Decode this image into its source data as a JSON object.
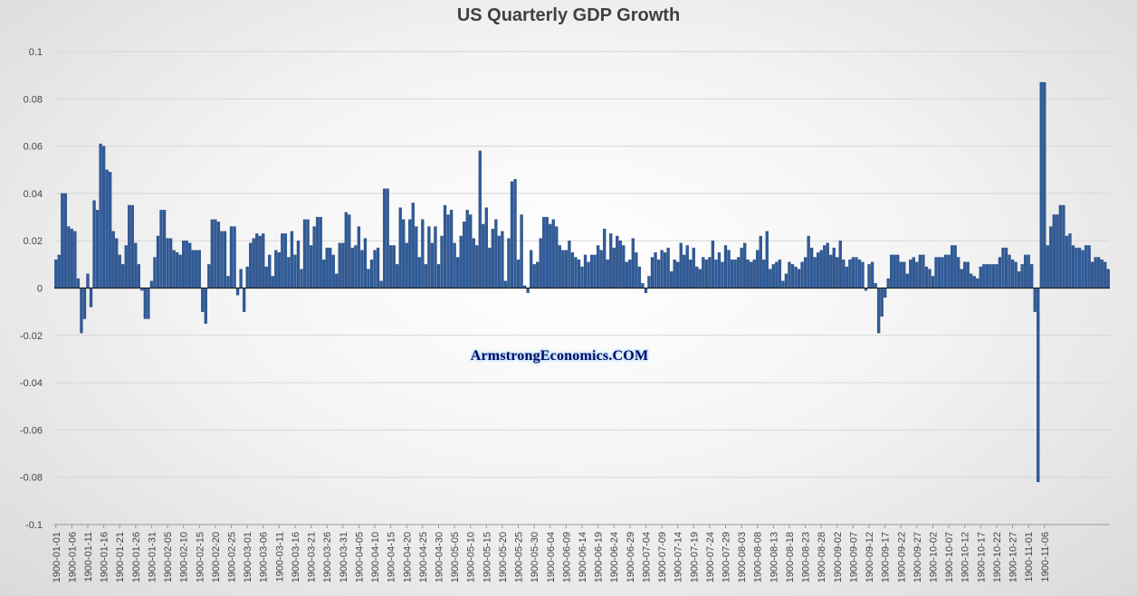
{
  "chart_data": {
    "type": "bar",
    "title": "US Quarterly GDP Growth",
    "xlabel": "",
    "ylabel": "",
    "ylim": [
      -0.1,
      0.1
    ],
    "y_ticks": [
      -0.1,
      -0.08,
      -0.06,
      -0.04,
      -0.02,
      0,
      0.02,
      0.04,
      0.06,
      0.08,
      0.1
    ],
    "y_tick_labels": [
      "-0.1",
      "-0.08",
      "-0.06",
      "-0.04",
      "-0.02",
      "0",
      "0.02",
      "0.04",
      "0.06",
      "0.08",
      "0.1"
    ],
    "grid": true,
    "legend": "none",
    "x_tick_labels": [
      "1900-01-01",
      "1900-01-06",
      "1900-01-11",
      "1900-01-16",
      "1900-01-21",
      "1900-01-26",
      "1900-01-31",
      "1900-02-05",
      "1900-02-10",
      "1900-02-15",
      "1900-02-20",
      "1900-02-25",
      "1900-03-01",
      "1900-03-06",
      "1900-03-11",
      "1900-03-16",
      "1900-03-21",
      "1900-03-26",
      "1900-03-31",
      "1900-04-05",
      "1900-04-10",
      "1900-04-15",
      "1900-04-20",
      "1900-04-25",
      "1900-04-30",
      "1900-05-05",
      "1900-05-10",
      "1900-05-15",
      "1900-05-20",
      "1900-05-25",
      "1900-05-30",
      "1900-06-04",
      "1900-06-09",
      "1900-06-14",
      "1900-06-19",
      "1900-06-24",
      "1900-06-29",
      "1900-07-04",
      "1900-07-09",
      "1900-07-14",
      "1900-07-19",
      "1900-07-24",
      "1900-07-29",
      "1900-08-03",
      "1900-08-08",
      "1900-08-13",
      "1900-08-18",
      "1900-08-23",
      "1900-08-28",
      "1900-09-02",
      "1900-09-07",
      "1900-09-12",
      "1900-09-17",
      "1900-09-22",
      "1900-09-27",
      "1900-10-02",
      "1900-10-07",
      "1900-10-12",
      "1900-10-17",
      "1900-10-22",
      "1900-10-27",
      "1900-11-01",
      "1900-11-06"
    ],
    "values": [
      0.012,
      0.014,
      0.04,
      0.04,
      0.026,
      0.025,
      0.024,
      0.004,
      -0.019,
      -0.013,
      0.006,
      -0.008,
      0.037,
      0.033,
      0.061,
      0.06,
      0.05,
      0.049,
      0.024,
      0.021,
      0.014,
      0.01,
      0.018,
      0.035,
      0.035,
      0.019,
      0.01,
      -0.001,
      -0.013,
      -0.013,
      0.003,
      0.013,
      0.022,
      0.033,
      0.033,
      0.021,
      0.021,
      0.016,
      0.015,
      0.014,
      0.02,
      0.02,
      0.019,
      0.016,
      0.016,
      0.016,
      -0.01,
      -0.015,
      0.01,
      0.029,
      0.029,
      0.028,
      0.024,
      0.024,
      0.005,
      0.026,
      0.026,
      -0.003,
      0.008,
      -0.01,
      0.009,
      0.019,
      0.021,
      0.023,
      0.022,
      0.023,
      0.009,
      0.014,
      0.005,
      0.016,
      0.015,
      0.023,
      0.023,
      0.013,
      0.024,
      0.014,
      0.02,
      0.008,
      0.029,
      0.029,
      0.018,
      0.026,
      0.03,
      0.03,
      0.012,
      0.017,
      0.017,
      0.014,
      0.006,
      0.019,
      0.019,
      0.032,
      0.031,
      0.017,
      0.018,
      0.026,
      0.016,
      0.021,
      0.008,
      0.012,
      0.016,
      0.017,
      0.003,
      0.042,
      0.042,
      0.018,
      0.018,
      0.01,
      0.034,
      0.029,
      0.019,
      0.029,
      0.036,
      0.026,
      0.013,
      0.029,
      0.01,
      0.026,
      0.019,
      0.026,
      0.01,
      0.022,
      0.035,
      0.031,
      0.033,
      0.019,
      0.013,
      0.022,
      0.028,
      0.033,
      0.031,
      0.021,
      0.018,
      0.058,
      0.027,
      0.034,
      0.017,
      0.025,
      0.029,
      0.022,
      0.024,
      0.003,
      0.021,
      0.045,
      0.046,
      0.012,
      0.031,
      0.001,
      -0.002,
      0.016,
      0.01,
      0.011,
      0.021,
      0.03,
      0.03,
      0.027,
      0.029,
      0.026,
      0.018,
      0.016,
      0.016,
      0.02,
      0.015,
      0.013,
      0.012,
      0.009,
      0.014,
      0.011,
      0.014,
      0.014,
      0.018,
      0.016,
      0.025,
      0.012,
      0.023,
      0.017,
      0.022,
      0.02,
      0.018,
      0.011,
      0.012,
      0.021,
      0.015,
      0.009,
      0.002,
      -0.002,
      0.005,
      0.013,
      0.015,
      0.012,
      0.016,
      0.015,
      0.017,
      0.007,
      0.012,
      0.011,
      0.019,
      0.014,
      0.018,
      0.012,
      0.017,
      0.009,
      0.008,
      0.013,
      0.012,
      0.013,
      0.02,
      0.012,
      0.015,
      0.011,
      0.018,
      0.016,
      0.012,
      0.012,
      0.013,
      0.017,
      0.019,
      0.012,
      0.011,
      0.012,
      0.016,
      0.022,
      0.012,
      0.024,
      0.008,
      0.01,
      0.011,
      0.012,
      0.003,
      0.006,
      0.011,
      0.01,
      0.009,
      0.008,
      0.011,
      0.013,
      0.022,
      0.017,
      0.013,
      0.015,
      0.016,
      0.018,
      0.019,
      0.014,
      0.017,
      0.013,
      0.02,
      0.012,
      0.009,
      0.012,
      0.013,
      0.013,
      0.012,
      0.011,
      -0.001,
      0.01,
      0.011,
      0.002,
      -0.019,
      -0.012,
      -0.004,
      0.004,
      0.014,
      0.014,
      0.014,
      0.011,
      0.011,
      0.006,
      0.012,
      0.013,
      0.011,
      0.014,
      0.014,
      0.009,
      0.008,
      0.005,
      0.013,
      0.013,
      0.013,
      0.014,
      0.014,
      0.018,
      0.018,
      0.013,
      0.008,
      0.011,
      0.011,
      0.006,
      0.005,
      0.004,
      0.009,
      0.01,
      0.01,
      0.01,
      0.01,
      0.01,
      0.013,
      0.017,
      0.017,
      0.014,
      0.012,
      0.011,
      0.007,
      0.01,
      0.014,
      0.014,
      0.01,
      -0.01,
      -0.082,
      0.087,
      0.087,
      0.018,
      0.026,
      0.031,
      0.031,
      0.035,
      0.035,
      0.022,
      0.023,
      0.018,
      0.017,
      0.017,
      0.016,
      0.018,
      0.018,
      0.011,
      0.013,
      0.013,
      0.012,
      0.011,
      0.008
    ]
  },
  "watermark": "ArmstrongEconomics.COM"
}
